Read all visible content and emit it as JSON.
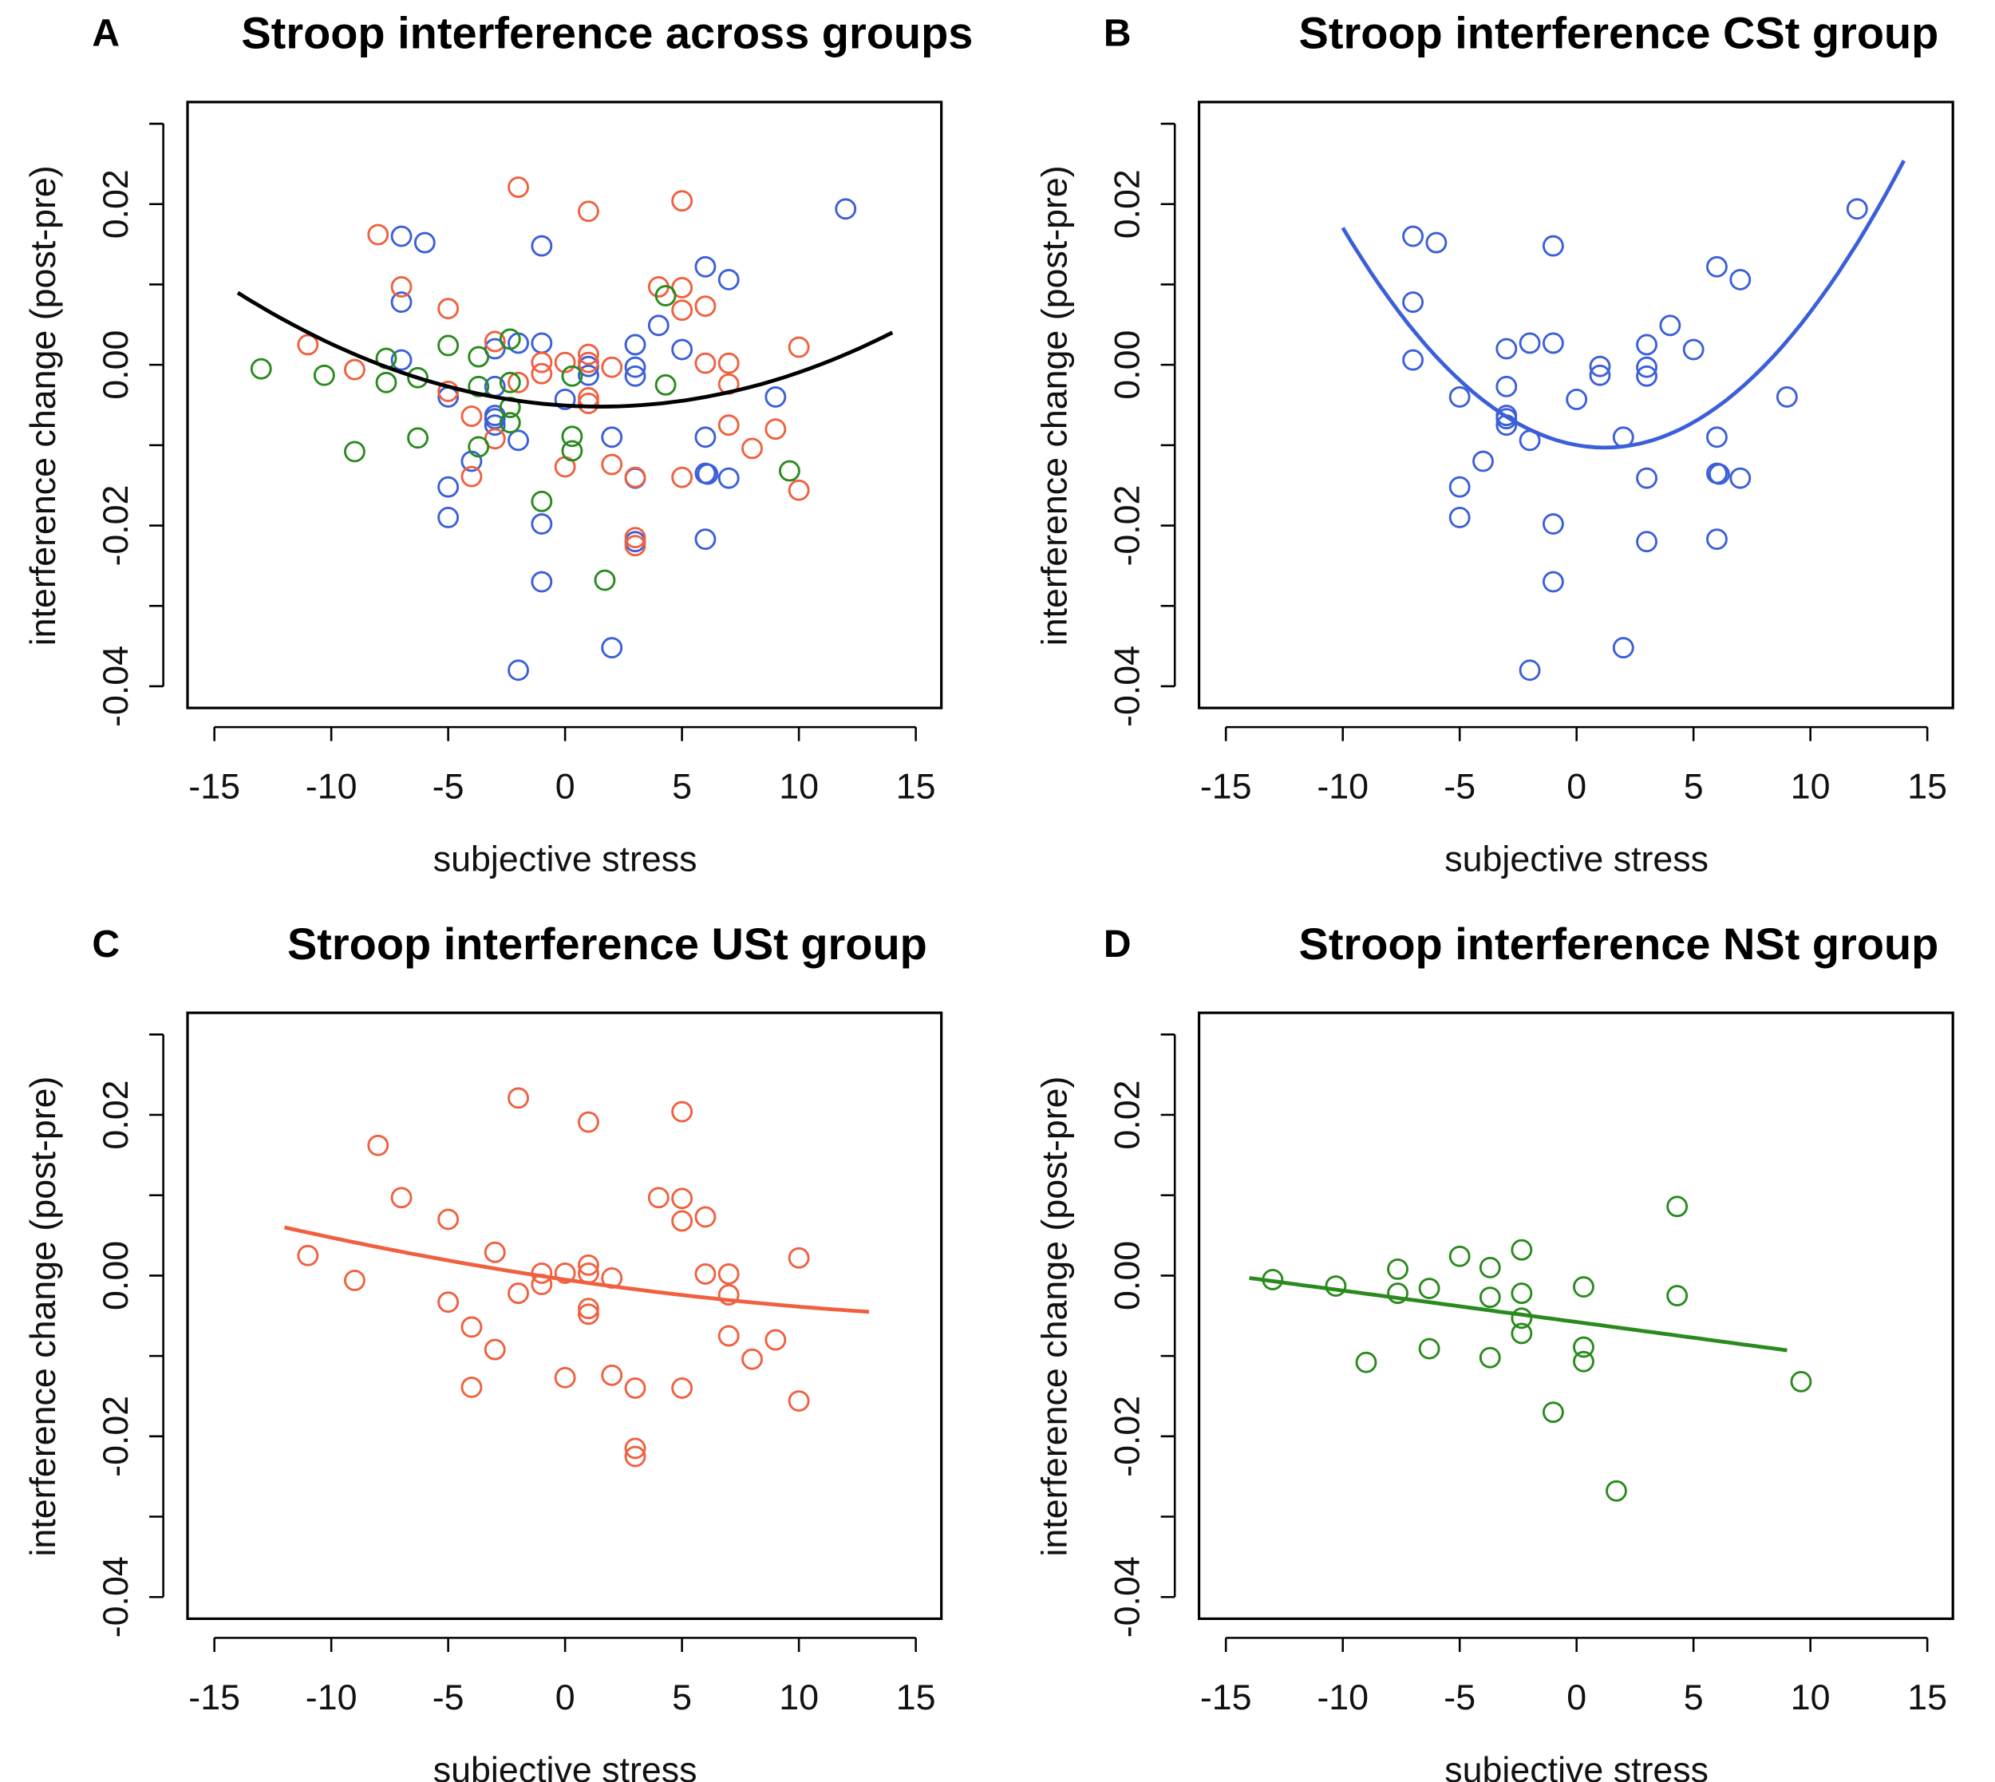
{
  "chart_data": [
    {
      "type": "scatter",
      "panel_letter": "A",
      "title": "Stroop interference across groups",
      "xlabel": "subjective stress",
      "ylabel": "interference change (post-pre)",
      "xlim": [
        -15,
        15
      ],
      "ylim": [
        -0.04,
        0.03
      ],
      "xticks": [
        -15,
        -10,
        -5,
        0,
        5,
        10,
        15
      ],
      "xtick_labels": [
        "-15",
        "-10",
        "-5",
        "0",
        "5",
        "10",
        "15"
      ],
      "yticks": [
        -0.04,
        -0.03,
        -0.02,
        -0.01,
        0.0,
        0.01,
        0.02,
        0.03
      ],
      "ytick_labels": [
        {
          "value": -0.04,
          "label": "-0.04"
        },
        {
          "value": -0.02,
          "label": "-0.02"
        },
        {
          "value": 0.0,
          "label": "0.00"
        },
        {
          "value": 0.02,
          "label": "0.02"
        }
      ],
      "series_from": [
        "CSt",
        "USt",
        "NSt"
      ],
      "fit": {
        "type": "quadratic",
        "color": "#000000",
        "x_range": [
          -14,
          14
        ],
        "a": 5.9e-05,
        "vertex_x": 1.5,
        "vertex_y": -0.0052
      }
    },
    {
      "type": "scatter",
      "panel_letter": "B",
      "title": "Stroop interference CSt group",
      "xlabel": "subjective stress",
      "ylabel": "interference change (post-pre)",
      "xlim": [
        -15,
        15
      ],
      "ylim": [
        -0.04,
        0.03
      ],
      "xticks": [
        -15,
        -10,
        -5,
        0,
        5,
        10,
        15
      ],
      "xtick_labels": [
        "-15",
        "-10",
        "-5",
        "0",
        "5",
        "10",
        "15"
      ],
      "yticks": [
        -0.04,
        -0.03,
        -0.02,
        -0.01,
        0.0,
        0.01,
        0.02,
        0.03
      ],
      "ytick_labels": [
        {
          "value": -0.04,
          "label": "-0.04"
        },
        {
          "value": -0.02,
          "label": "-0.02"
        },
        {
          "value": 0.0,
          "label": "0.00"
        },
        {
          "value": 0.02,
          "label": "0.02"
        }
      ],
      "series_from": [
        "CSt"
      ],
      "fit": {
        "type": "quadratic",
        "color": "#3B5FD9",
        "x_range": [
          -10,
          14
        ],
        "a": 0.000218,
        "vertex_x": 1.2,
        "vertex_y": -0.0103
      }
    },
    {
      "type": "scatter",
      "panel_letter": "C",
      "title": "Stroop interference USt group",
      "xlabel": "subjective stress",
      "ylabel": "interference change (post-pre)",
      "xlim": [
        -15,
        15
      ],
      "ylim": [
        -0.04,
        0.03
      ],
      "xticks": [
        -15,
        -10,
        -5,
        0,
        5,
        10,
        15
      ],
      "xtick_labels": [
        "-15",
        "-10",
        "-5",
        "0",
        "5",
        "10",
        "15"
      ],
      "yticks": [
        -0.04,
        -0.03,
        -0.02,
        -0.01,
        0.0,
        0.01,
        0.02,
        0.03
      ],
      "ytick_labels": [
        {
          "value": -0.04,
          "label": "-0.04"
        },
        {
          "value": -0.02,
          "label": "-0.02"
        },
        {
          "value": 0.0,
          "label": "0.00"
        },
        {
          "value": 0.02,
          "label": "0.02"
        }
      ],
      "series_from": [
        "USt"
      ],
      "fit": {
        "type": "poly2",
        "color": "#F0603F",
        "x_range": [
          -12,
          13
        ],
        "c2": 9.35e-06,
        "c1": -0.00043,
        "c0": -0.0005
      }
    },
    {
      "type": "scatter",
      "panel_letter": "D",
      "title": "Stroop interference NSt group",
      "xlabel": "subjective stress",
      "ylabel": "interference change (post-pre)",
      "xlim": [
        -15,
        15
      ],
      "ylim": [
        -0.04,
        0.03
      ],
      "xticks": [
        -15,
        -10,
        -5,
        0,
        5,
        10,
        15
      ],
      "xtick_labels": [
        "-15",
        "-10",
        "-5",
        "0",
        "5",
        "10",
        "15"
      ],
      "yticks": [
        -0.04,
        -0.03,
        -0.02,
        -0.01,
        0.0,
        0.01,
        0.02,
        0.03
      ],
      "ytick_labels": [
        {
          "value": -0.04,
          "label": "-0.04"
        },
        {
          "value": -0.02,
          "label": "-0.02"
        },
        {
          "value": 0.0,
          "label": "0.00"
        },
        {
          "value": 0.02,
          "label": "0.02"
        }
      ],
      "series_from": [
        "NSt"
      ],
      "fit": {
        "type": "linear",
        "color": "#2A8A1E",
        "x_range": [
          -14,
          9
        ],
        "y_range": [
          -0.0003,
          -0.0093
        ]
      }
    }
  ],
  "series": {
    "CSt": {
      "color": "#3B5FD9",
      "points": [
        [
          -7,
          0.016
        ],
        [
          -6,
          0.0152
        ],
        [
          -7,
          0.0078
        ],
        [
          -7,
          0.0006
        ],
        [
          -5,
          -0.004
        ],
        [
          -5,
          -0.0152
        ],
        [
          -5,
          -0.019
        ],
        [
          -4,
          -0.012
        ],
        [
          -3,
          0.002
        ],
        [
          -3,
          -0.0027
        ],
        [
          -3,
          -0.0067
        ],
        [
          -3,
          -0.0075
        ],
        [
          -3,
          -0.0063
        ],
        [
          -2,
          0.0027
        ],
        [
          -2,
          -0.0094
        ],
        [
          -2,
          -0.038
        ],
        [
          -1,
          0.0148
        ],
        [
          -1,
          0.0027
        ],
        [
          -1,
          -0.0198
        ],
        [
          -1,
          -0.027
        ],
        [
          0,
          -0.0043
        ],
        [
          1,
          -0.0002
        ],
        [
          1,
          -0.0013
        ],
        [
          2,
          -0.009
        ],
        [
          2,
          -0.0352
        ],
        [
          3,
          0.0025
        ],
        [
          3,
          -0.0003
        ],
        [
          3,
          -0.0014
        ],
        [
          3,
          -0.0141
        ],
        [
          3,
          -0.022
        ],
        [
          4,
          0.0049
        ],
        [
          5,
          0.0019
        ],
        [
          6,
          0.0122
        ],
        [
          6,
          -0.009
        ],
        [
          6,
          -0.0135
        ],
        [
          6.1,
          -0.0136
        ],
        [
          6,
          -0.0217
        ],
        [
          7,
          0.0106
        ],
        [
          7,
          -0.0141
        ],
        [
          9,
          -0.004
        ],
        [
          12,
          0.0194
        ]
      ]
    },
    "USt": {
      "color": "#F0603F",
      "points": [
        [
          -11,
          0.0025
        ],
        [
          -9,
          -0.0006
        ],
        [
          -8,
          0.0162
        ],
        [
          -7,
          0.0097
        ],
        [
          -5,
          0.007
        ],
        [
          -5,
          -0.0033
        ],
        [
          -4,
          -0.0064
        ],
        [
          -4,
          -0.0139
        ],
        [
          -3,
          0.0029
        ],
        [
          -3,
          -0.0092
        ],
        [
          -2,
          0.0221
        ],
        [
          -2,
          -0.0022
        ],
        [
          -1,
          0.0003
        ],
        [
          -1,
          -0.0011
        ],
        [
          0,
          0.0003
        ],
        [
          0,
          -0.0127
        ],
        [
          1,
          0.0191
        ],
        [
          1,
          0.0013
        ],
        [
          1,
          0.0003
        ],
        [
          1,
          -0.0041
        ],
        [
          1,
          -0.0048
        ],
        [
          2,
          -0.0003
        ],
        [
          2,
          -0.0124
        ],
        [
          3,
          -0.014
        ],
        [
          3,
          -0.0215
        ],
        [
          3,
          -0.0225
        ],
        [
          4,
          0.0097
        ],
        [
          5,
          0.0204
        ],
        [
          5,
          0.0096
        ],
        [
          5,
          0.0068
        ],
        [
          5,
          -0.014
        ],
        [
          6,
          0.0073
        ],
        [
          6,
          0.0002
        ],
        [
          7,
          0.0002
        ],
        [
          7,
          -0.0024
        ],
        [
          7,
          -0.0075
        ],
        [
          8,
          -0.0104
        ],
        [
          9,
          -0.008
        ],
        [
          10,
          0.0022
        ],
        [
          10,
          -0.0156
        ]
      ]
    },
    "NSt": {
      "color": "#2A8A1E",
      "points": [
        [
          -13,
          -0.0005
        ],
        [
          -10.3,
          -0.0013
        ],
        [
          -9,
          -0.0108
        ],
        [
          -7.65,
          0.0008
        ],
        [
          -7.65,
          -0.0022
        ],
        [
          -6.3,
          -0.0016
        ],
        [
          -6.3,
          -0.0091
        ],
        [
          -5,
          0.0024
        ],
        [
          -3.7,
          0.001
        ],
        [
          -3.7,
          -0.0027
        ],
        [
          -3.7,
          -0.0102
        ],
        [
          -2.35,
          0.0032
        ],
        [
          -2.35,
          -0.0022
        ],
        [
          -2.35,
          -0.0053
        ],
        [
          -2.35,
          -0.0072
        ],
        [
          -1,
          -0.017
        ],
        [
          0.3,
          -0.0014
        ],
        [
          0.3,
          -0.0089
        ],
        [
          0.3,
          -0.0107
        ],
        [
          1.7,
          -0.0268
        ],
        [
          4.3,
          0.0086
        ],
        [
          4.3,
          -0.0025
        ],
        [
          9.6,
          -0.0132
        ]
      ]
    }
  }
}
